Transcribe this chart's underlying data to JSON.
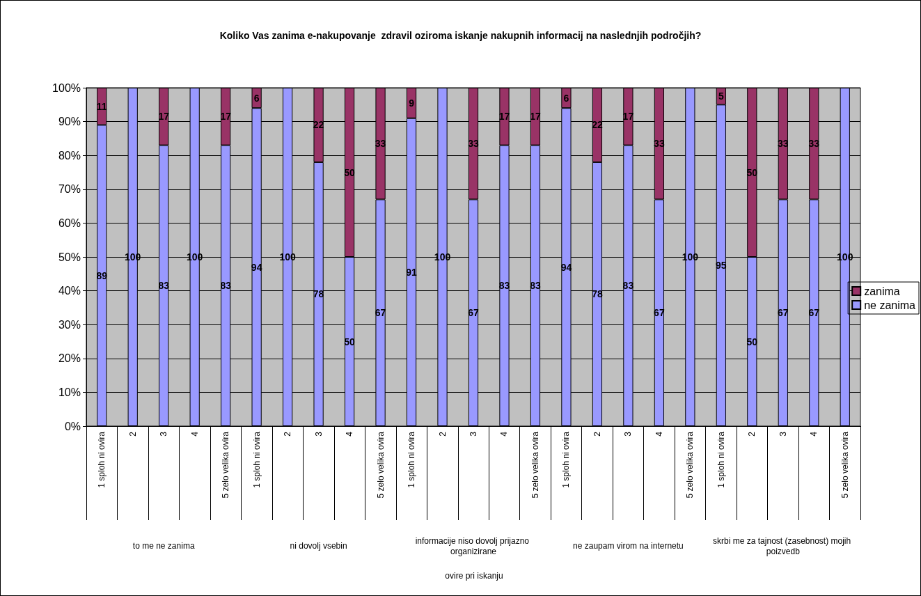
{
  "chart_data": {
    "type": "bar",
    "stacked": true,
    "title": "Koliko Vas zanima e-nakupovanje  zdravil oziroma iskanje nakupnih informacij na naslednjih področjih?",
    "annotations": [
      "to me ne zanima",
      "ni dovolj vsebin",
      "informacije niso dovolj prijazno organizirane",
      "ne zaupam virom na internetu",
      "skrbi me za tajnost (zasebnost) mojih poizvedb",
      "ovire pri iskanju"
    ],
    "categories": [
      "1 sploh ni ovira",
      "2",
      "3",
      "4",
      "5 zelo velika ovira",
      "1 sploh ni ovira",
      "2",
      "3",
      "4",
      "5 zelo velika ovira",
      "1 sploh ni ovira",
      "2",
      "3",
      "4",
      "5 zelo velika ovira",
      "1 sploh ni ovira",
      "2",
      "3",
      "4",
      "5 zelo velika ovira",
      "1 sploh ni ovira",
      "2",
      "3",
      "4",
      "5 zelo velika ovira"
    ],
    "series": [
      {
        "name": "ne zanima",
        "color": "#9999ff",
        "values": [
          89,
          100,
          83,
          100,
          83,
          94,
          100,
          78,
          50,
          67,
          91,
          100,
          67,
          83,
          83,
          94,
          78,
          83,
          67,
          100,
          95,
          50,
          67,
          67,
          100
        ]
      },
      {
        "name": "zanima",
        "color": "#993366",
        "values": [
          11,
          null,
          17,
          null,
          17,
          6,
          null,
          22,
          50,
          33,
          9,
          null,
          33,
          17,
          17,
          6,
          22,
          17,
          33,
          null,
          5,
          50,
          33,
          33,
          null
        ]
      }
    ],
    "ylim": [
      0,
      100
    ],
    "yticks": [
      {
        "value": 0,
        "label": "0%"
      },
      {
        "value": 10,
        "label": "10%"
      },
      {
        "value": 20,
        "label": "20%"
      },
      {
        "value": 30,
        "label": "30%"
      },
      {
        "value": 40,
        "label": "40%"
      },
      {
        "value": 50,
        "label": "50%"
      },
      {
        "value": 60,
        "label": "60%"
      },
      {
        "value": 70,
        "label": "70%"
      },
      {
        "value": 80,
        "label": "80%"
      },
      {
        "value": 90,
        "label": "90%"
      },
      {
        "value": 100,
        "label": "100%"
      }
    ],
    "grid": "y",
    "legend": "right",
    "data_labels": true
  }
}
